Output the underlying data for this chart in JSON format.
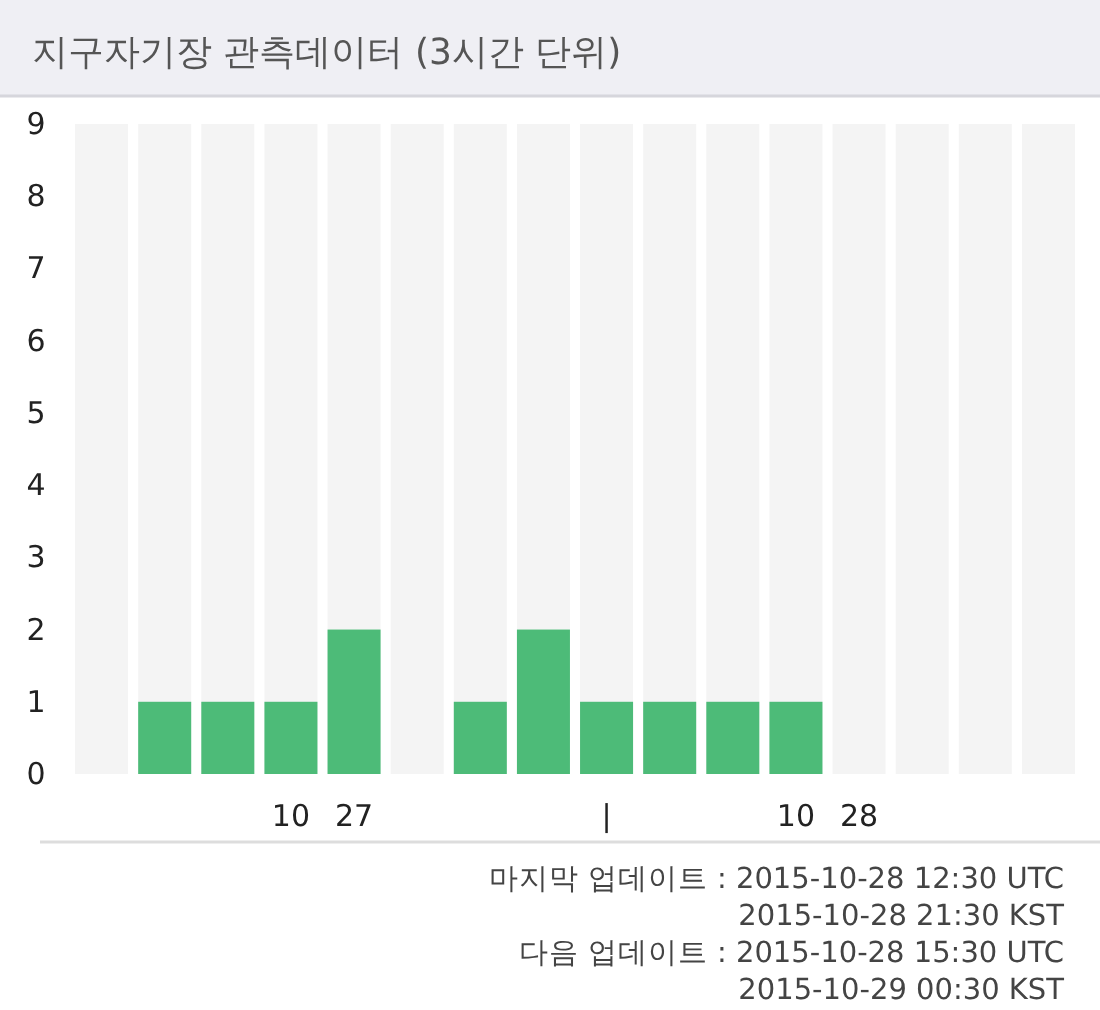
{
  "chart_data": {
    "type": "bar",
    "title": "지구자기장 관측데이터 (3시간 단위)",
    "categories": [
      null,
      null,
      null,
      "10",
      "27",
      null,
      null,
      null,
      "|",
      null,
      null,
      "10",
      "28",
      null,
      null,
      null
    ],
    "values": [
      0,
      1,
      1,
      1,
      2,
      0,
      1,
      2,
      1,
      1,
      1,
      1,
      0,
      0,
      0,
      0
    ],
    "color": "#4dbb78",
    "ylim": [
      0,
      9
    ],
    "yticks": [
      0,
      1,
      2,
      3,
      4,
      5,
      6,
      7,
      8,
      9
    ],
    "grid": false,
    "annotations": [
      "마지막 업데이트 : 2015-10-28 12:30 UTC",
      "2015-10-28 21:30 KST",
      "다음 업데이트 : 2015-10-28 15:30 UTC",
      "2015-10-29 00:30 KST"
    ]
  }
}
